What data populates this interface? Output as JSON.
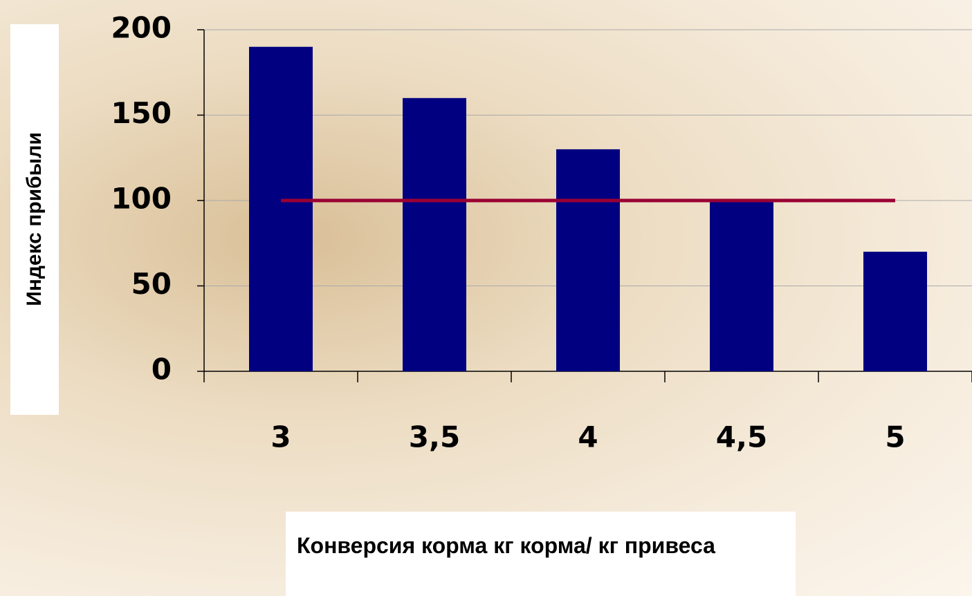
{
  "chart_data": {
    "type": "bar",
    "y_label": "Индекс прибыли",
    "x_label": "Конверсия корма кг корма/ кг привеса",
    "categories": [
      "3",
      "3,5",
      "4",
      "4,5",
      "5"
    ],
    "series": [
      {
        "type": "bar",
        "color": "#000080",
        "values": [
          190,
          160,
          130,
          100,
          70
        ]
      },
      {
        "type": "line",
        "color": "#990033",
        "values": [
          100,
          100,
          100,
          100,
          100
        ]
      }
    ],
    "ylim": [
      0,
      200
    ],
    "yticks": [
      0,
      50,
      100,
      150,
      200
    ],
    "grid": true
  }
}
